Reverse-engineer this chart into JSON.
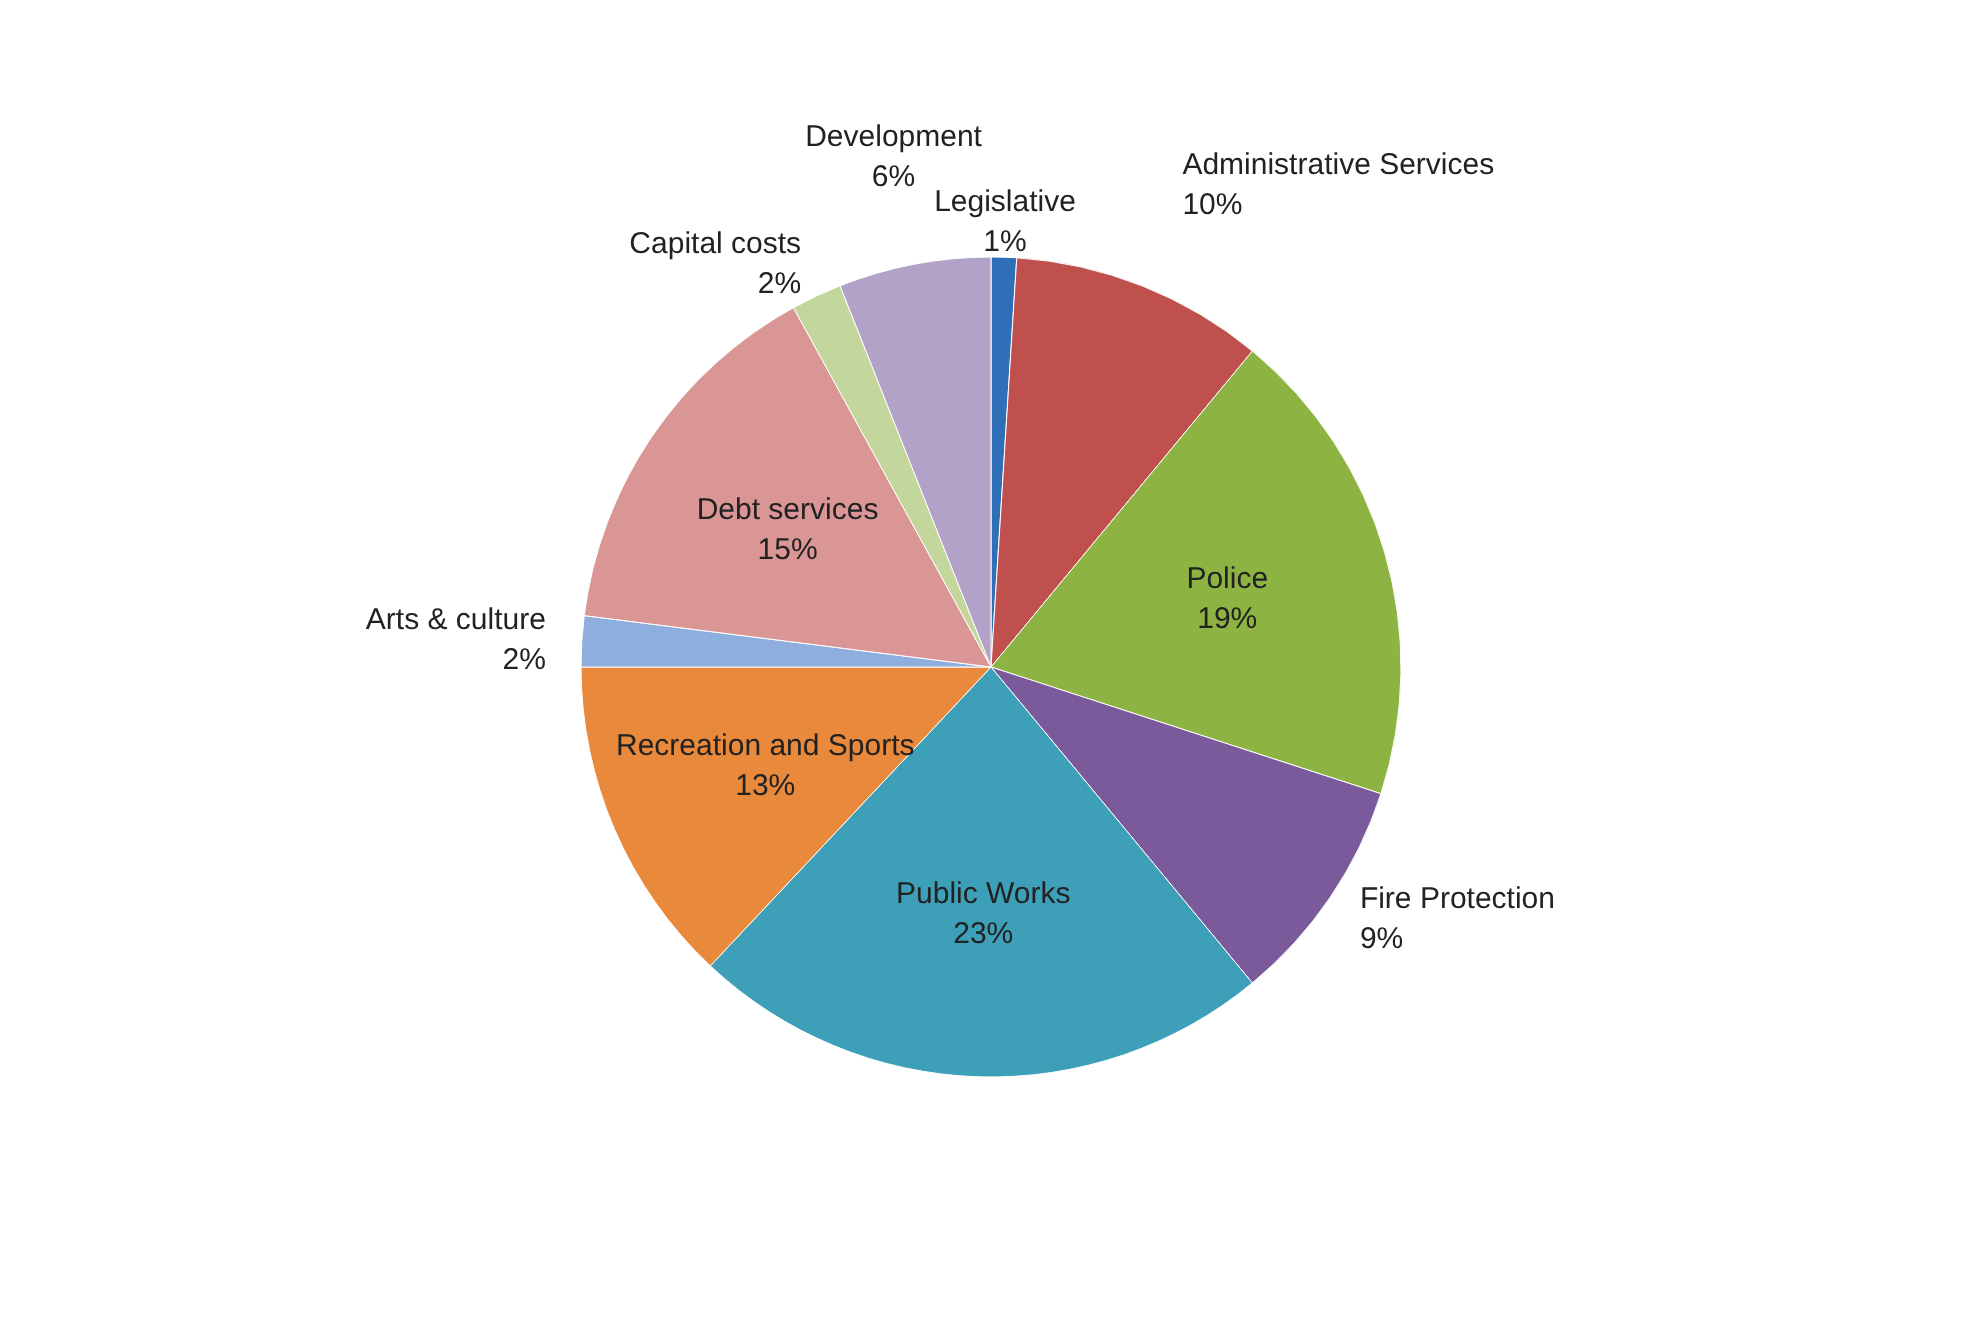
{
  "chart_data": {
    "type": "pie",
    "categories": [
      "Legislative",
      "Administrative Services",
      "Police",
      "Fire Protection",
      "Public Works",
      "Recreation and Sports",
      "Arts & culture",
      "Debt services",
      "Capital costs",
      "Development"
    ],
    "values": [
      1,
      10,
      19,
      9,
      23,
      13,
      2,
      15,
      2,
      6
    ],
    "colors": [
      "#2e6fb7",
      "#c0504d",
      "#8db342",
      "#7b5a9b",
      "#3d9fb8",
      "#e8893b",
      "#8eaedd",
      "#d99694",
      "#c3d69b",
      "#b3a2c7"
    ],
    "value_labels": [
      "1%",
      "10%",
      "19%",
      "9%",
      "23%",
      "13%",
      "2%",
      "15%",
      "2%",
      "6%"
    ]
  }
}
